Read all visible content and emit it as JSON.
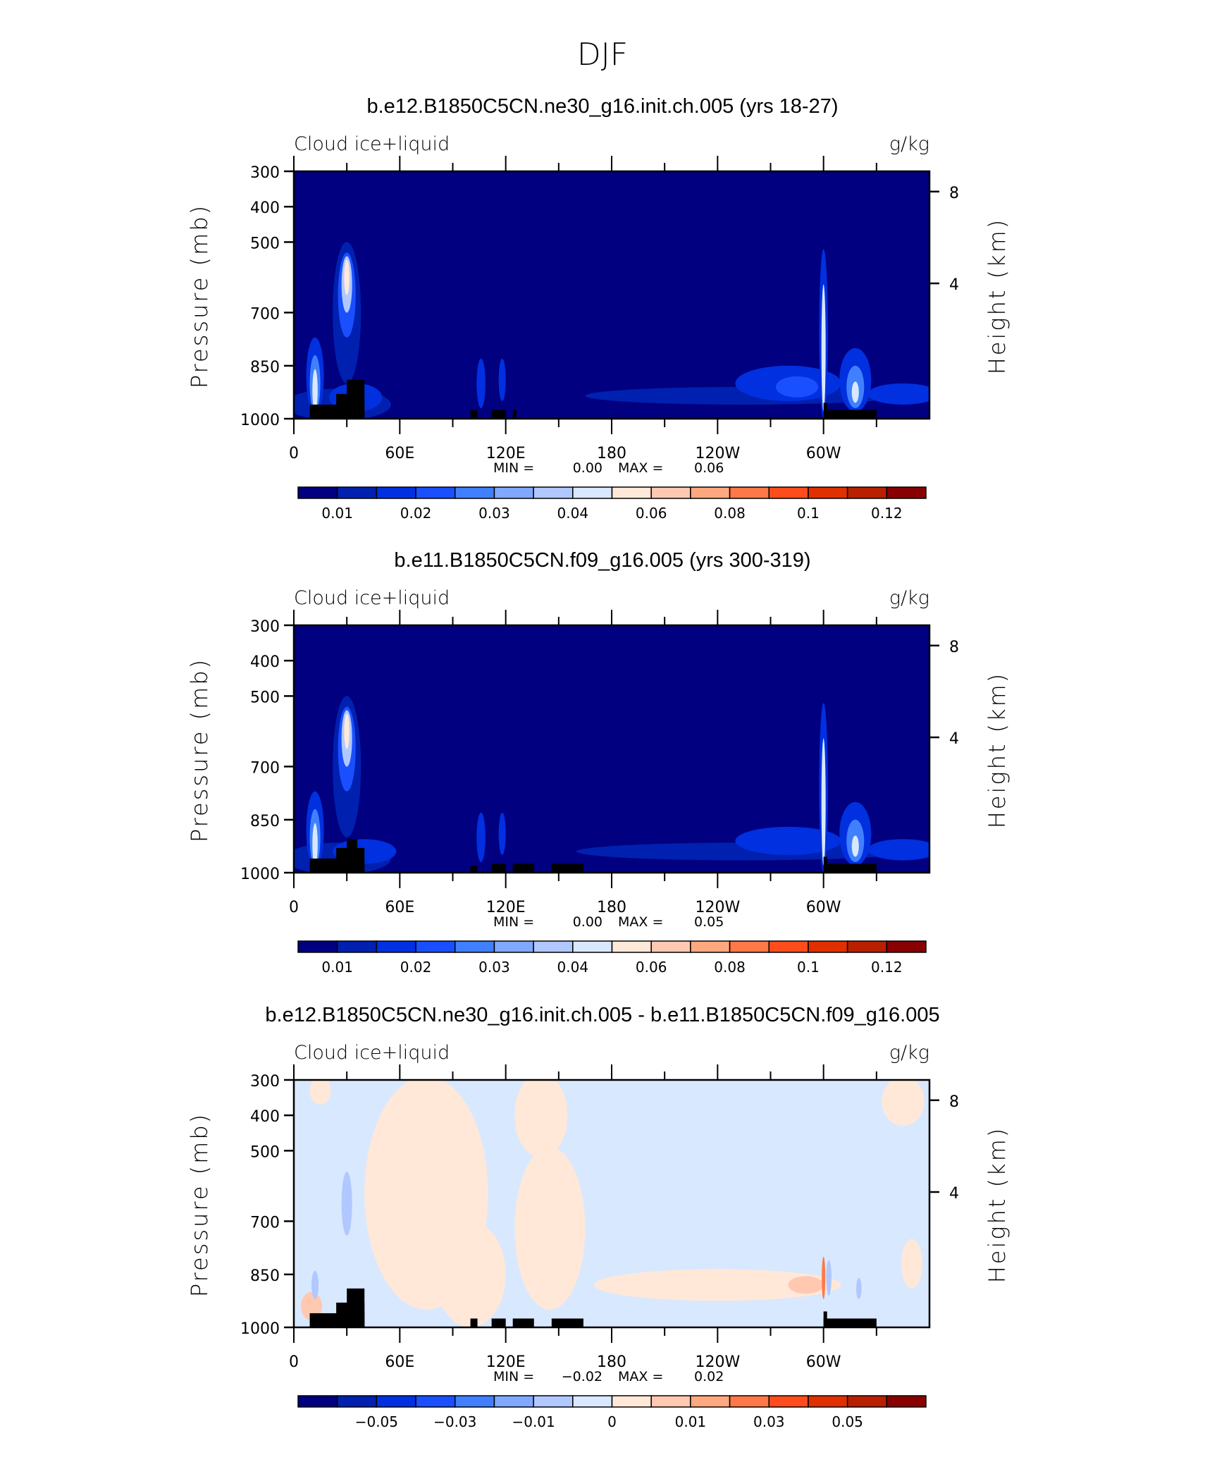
{
  "figure_title": "DJF",
  "chart_data": [
    {
      "type": "heatmap",
      "title": "b.e12.B1850C5CN.ne30_g16.init.ch.005 (yrs 18-27)",
      "left_string": "Cloud ice+liquid",
      "right_string": "g/kg",
      "ylabel": "Pressure (mb)",
      "ylabel_right": "Height (km)",
      "xticks": [
        "0",
        "60E",
        "120E",
        "180",
        "120W",
        "60W"
      ],
      "yticks": [
        "300",
        "400",
        "500",
        "700",
        "850",
        "1000"
      ],
      "yticks_right": [
        "8",
        "4"
      ],
      "ylim": [
        1000,
        300
      ],
      "xlim": [
        0,
        360
      ],
      "min_label": "MIN =",
      "min_value": "0.00",
      "max_label": "MAX =",
      "max_value": "0.06",
      "colorbar_labels": [
        "0.01",
        "0.02",
        "0.03",
        "0.04",
        "0.06",
        "0.08",
        "0.1",
        "0.12"
      ],
      "colorbar_placement": "bottom"
    },
    {
      "type": "heatmap",
      "title": "b.e11.B1850C5CN.f09_g16.005 (yrs 300-319)",
      "left_string": "Cloud ice+liquid",
      "right_string": "g/kg",
      "ylabel": "Pressure (mb)",
      "ylabel_right": "Height (km)",
      "xticks": [
        "0",
        "60E",
        "120E",
        "180",
        "120W",
        "60W"
      ],
      "yticks": [
        "300",
        "400",
        "500",
        "700",
        "850",
        "1000"
      ],
      "yticks_right": [
        "8",
        "4"
      ],
      "ylim": [
        1000,
        300
      ],
      "xlim": [
        0,
        360
      ],
      "min_label": "MIN =",
      "min_value": "0.00",
      "max_label": "MAX =",
      "max_value": "0.05",
      "colorbar_labels": [
        "0.01",
        "0.02",
        "0.03",
        "0.04",
        "0.06",
        "0.08",
        "0.1",
        "0.12"
      ],
      "colorbar_placement": "bottom"
    },
    {
      "type": "heatmap",
      "title": "b.e12.B1850C5CN.ne30_g16.init.ch.005 - b.e11.B1850C5CN.f09_g16.005",
      "left_string": "Cloud ice+liquid",
      "right_string": "g/kg",
      "ylabel": "Pressure (mb)",
      "ylabel_right": "Height (km)",
      "xticks": [
        "0",
        "60E",
        "120E",
        "180",
        "120W",
        "60W"
      ],
      "yticks": [
        "300",
        "400",
        "500",
        "700",
        "850",
        "1000"
      ],
      "yticks_right": [
        "8",
        "4"
      ],
      "ylim": [
        1000,
        300
      ],
      "xlim": [
        0,
        360
      ],
      "min_label": "MIN =",
      "min_value": "−0.02",
      "max_label": "MAX =",
      "max_value": "0.02",
      "colorbar_labels": [
        "−0.05",
        "−0.03",
        "−0.01",
        "0",
        "0.01",
        "0.03",
        "0.05"
      ],
      "colorbar_placement": "bottom"
    }
  ],
  "colors": {
    "palette": [
      "#000080",
      "#0020b0",
      "#0030e0",
      "#1a4fff",
      "#4080ff",
      "#80a8ff",
      "#b0c8ff",
      "#d8e8ff",
      "#ffe8d8",
      "#ffc8b0",
      "#ffa880",
      "#ff7848",
      "#ff4c1c",
      "#e03000",
      "#b82000",
      "#880000"
    ],
    "topography": "#000000"
  }
}
